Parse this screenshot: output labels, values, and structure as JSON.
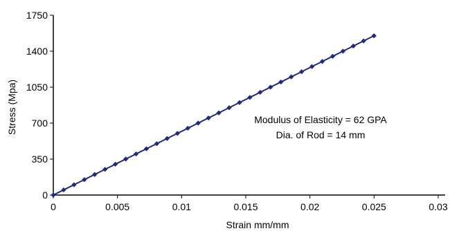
{
  "chart_data": {
    "type": "scatter",
    "title": "",
    "xlabel": "Strain mm/mm",
    "ylabel": "Stress (Mpa)",
    "xlim": [
      0,
      0.03
    ],
    "ylim": [
      0,
      1750
    ],
    "x_ticks": [
      0,
      0.005,
      0.01,
      0.015,
      0.02,
      0.025,
      0.03
    ],
    "x_tick_labels": [
      "0",
      "0.005",
      "0.01",
      "0.015",
      "0.02",
      "0.025",
      "0.03"
    ],
    "y_ticks": [
      0,
      350,
      700,
      1050,
      1400,
      1750
    ],
    "y_tick_labels": [
      "0",
      "350",
      "700",
      "1050",
      "1400",
      "1750"
    ],
    "grid": false,
    "legend": "none",
    "series": [
      {
        "color": "#1f2a7a",
        "marker": "diamond",
        "line": true,
        "x": [
          0,
          0.000806,
          0.001612,
          0.002419,
          0.003225,
          0.004031,
          0.004837,
          0.005644,
          0.00645,
          0.007256,
          0.008062,
          0.008869,
          0.009675,
          0.010481,
          0.011287,
          0.012094,
          0.0129,
          0.013706,
          0.014512,
          0.015319,
          0.016125,
          0.016931,
          0.017737,
          0.018544,
          0.01935,
          0.020156,
          0.020962,
          0.021769,
          0.022575,
          0.023381,
          0.024187,
          0.024994
        ],
        "y": [
          0,
          50,
          100,
          150,
          200,
          250,
          300,
          350,
          400,
          450,
          500,
          550,
          600,
          650,
          700,
          750,
          800,
          850,
          900,
          950,
          1000,
          1050,
          1100,
          1150,
          1200,
          1250,
          1300,
          1350,
          1400,
          1450,
          1500,
          1550
        ]
      }
    ],
    "annotations": [
      "Modulus of Elasticity = 62 GPA",
      "Dia. of Rod = 14 mm"
    ]
  }
}
